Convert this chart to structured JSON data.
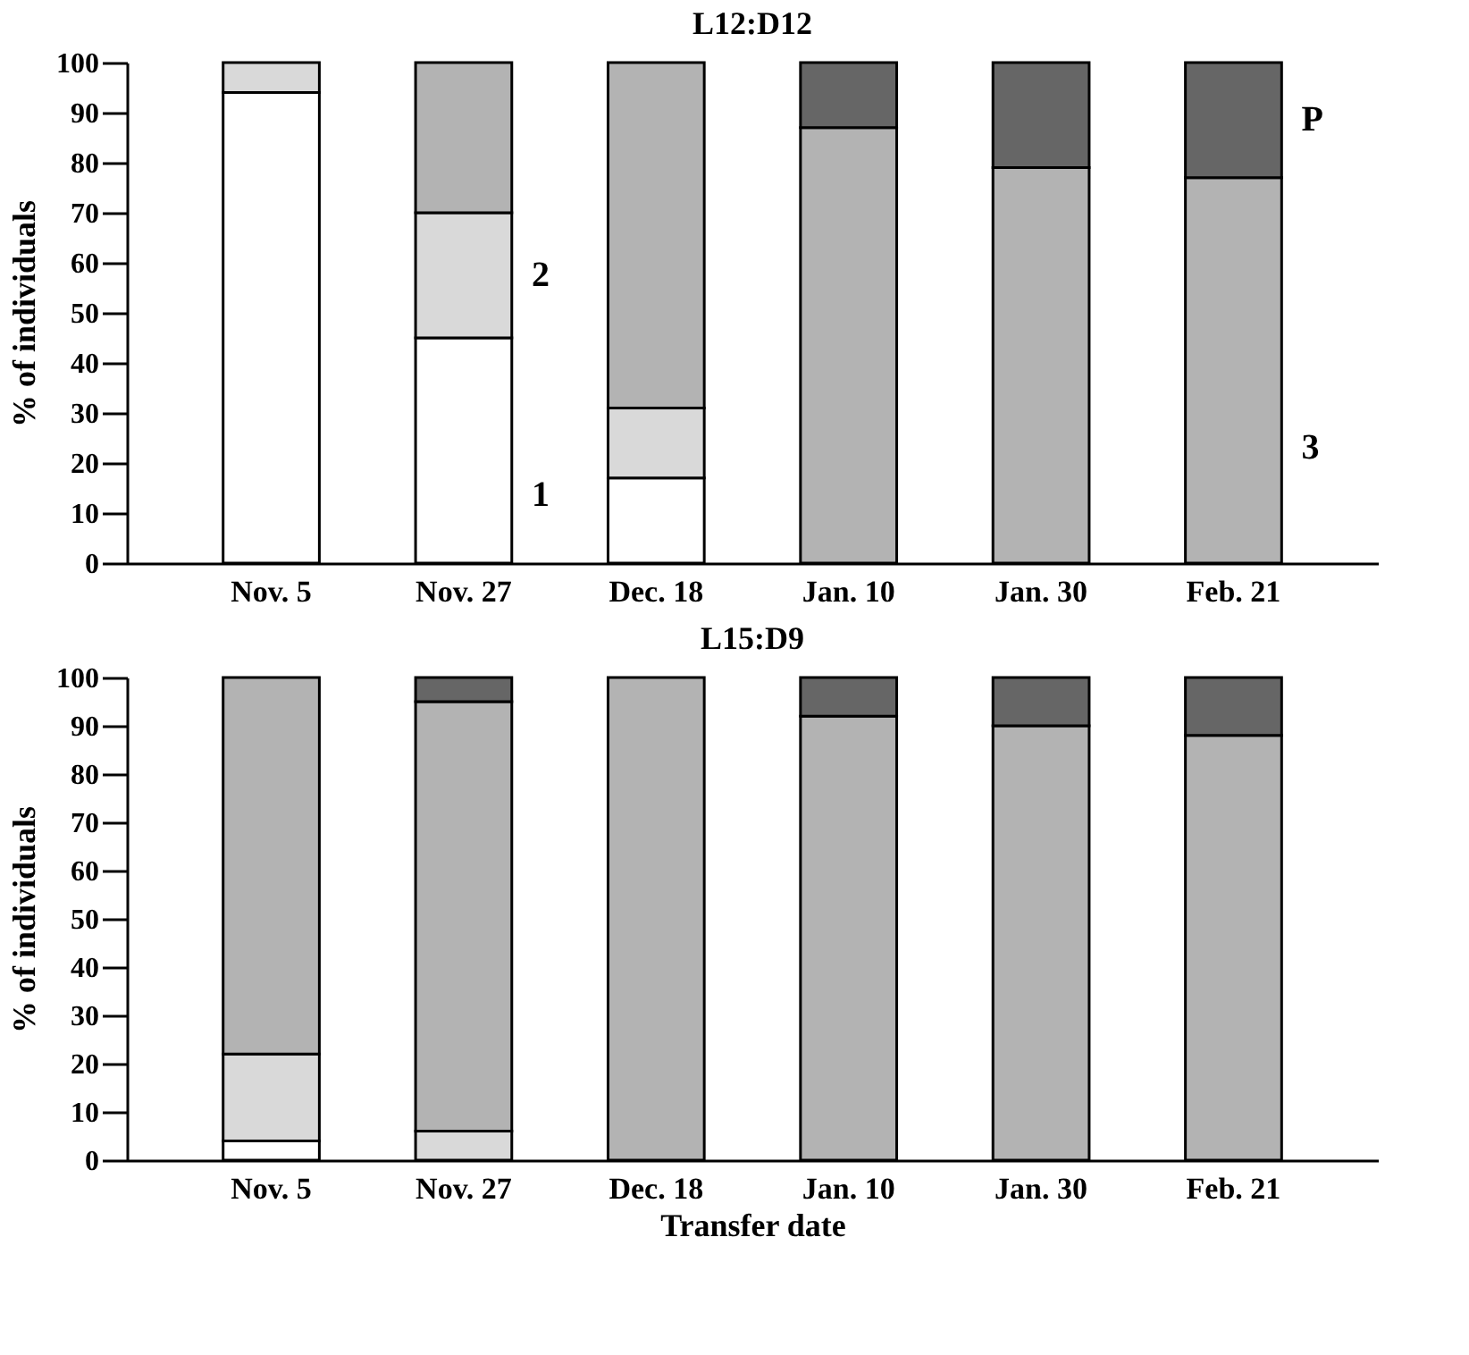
{
  "chart_data": [
    {
      "type": "bar",
      "stacked": true,
      "title": "L12:D12",
      "ylabel": "% of individuals",
      "categories": [
        "Nov. 5",
        "Nov. 27",
        "Dec. 18",
        "Jan. 10",
        "Jan. 30",
        "Feb. 21"
      ],
      "ylim": [
        0,
        100
      ],
      "yticks": [
        0,
        10,
        20,
        30,
        40,
        50,
        60,
        70,
        80,
        90,
        100
      ],
      "grid": false,
      "series": [
        {
          "name": "1",
          "color": "#ffffff",
          "values": [
            94,
            45,
            17,
            null,
            null,
            null
          ]
        },
        {
          "name": "2",
          "color": "#d9d9d9",
          "values": [
            6,
            25,
            14,
            null,
            null,
            null
          ]
        },
        {
          "name": "3",
          "color": "#b3b3b3",
          "values": [
            null,
            30,
            69,
            87,
            79,
            77
          ]
        },
        {
          "name": "P",
          "color": "#666666",
          "values": [
            null,
            null,
            null,
            13,
            21,
            23
          ]
        }
      ]
    },
    {
      "type": "bar",
      "stacked": true,
      "title": "L15:D9",
      "xlabel": "Transfer date",
      "ylabel": "% of individuals",
      "categories": [
        "Nov. 5",
        "Nov. 27",
        "Dec. 18",
        "Jan. 10",
        "Jan. 30",
        "Feb. 21"
      ],
      "ylim": [
        0,
        100
      ],
      "yticks": [
        0,
        10,
        20,
        30,
        40,
        50,
        60,
        70,
        80,
        90,
        100
      ],
      "grid": false,
      "series": [
        {
          "color": "#ffffff",
          "values": [
            4,
            null,
            null,
            null,
            null,
            null
          ]
        },
        {
          "color": "#d9d9d9",
          "values": [
            18,
            6,
            null,
            null,
            null,
            null
          ]
        },
        {
          "color": "#b3b3b3",
          "values": [
            78,
            89,
            100,
            92,
            90,
            88
          ]
        },
        {
          "color": "#666666",
          "values": [
            null,
            5,
            null,
            8,
            10,
            12
          ]
        }
      ]
    }
  ]
}
